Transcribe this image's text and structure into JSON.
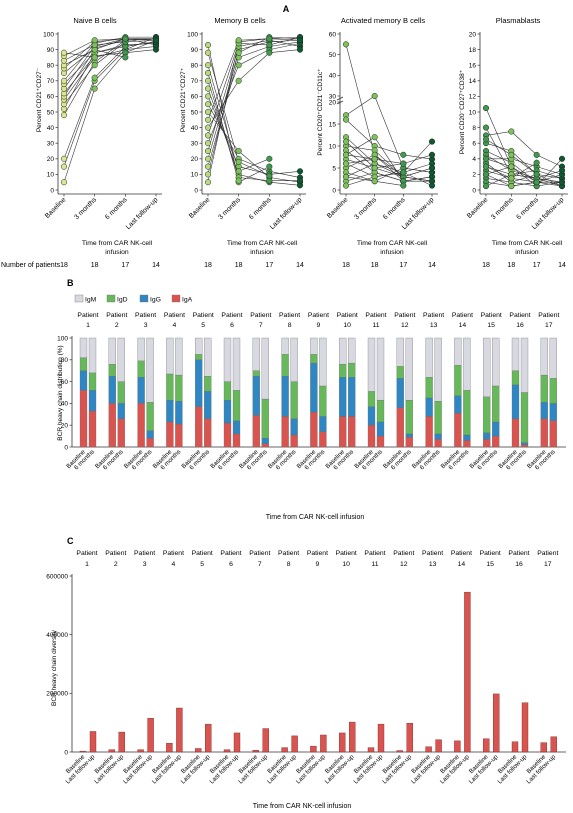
{
  "panel_labels": {
    "a": "A",
    "b": "B",
    "c": "C"
  },
  "colors": {
    "naive_marker": "#dbe68e",
    "memory_marker": "#b7dc7a",
    "activated_marker": "#7cc35a",
    "plasma_marker": "#3f9a4b",
    "last_marker": "#0d5a32",
    "IgM": "#d8d8e0",
    "IgD": "#67b85b",
    "IgG": "#2e86c3",
    "IgA": "#d9534f",
    "diversity_bar": "#d9534f"
  },
  "panel_a": {
    "number_of_patients_label": "Number of patients",
    "x_title_line1": "Time from CAR NK-cell",
    "x_title_line2": "infusion",
    "timepoints": [
      "Baseline",
      "3 months",
      "6 months",
      "Last follow-up"
    ],
    "patient_counts": [
      "18",
      "18",
      "17",
      "14"
    ]
  },
  "panel_b": {
    "ylabel": "BCR heavy chain distribution (%)",
    "xlabel": "Time from CAR NK-cell infusion",
    "patient_word": "Patient",
    "bar_labels": [
      "Baseline",
      "6 months"
    ]
  },
  "panel_c": {
    "ylabel": "BCR heavy chain diversity",
    "xlabel": "Time from CAR NK-cell infusion",
    "patient_word": "Patient",
    "bar_labels": [
      "Baseline",
      "Last follow-up"
    ]
  },
  "chart_data": [
    {
      "type": "scatter",
      "title": "Naive B cells",
      "ylabel": "Percent CD21⁺CD27⁻",
      "categories": [
        "Baseline",
        "3 months",
        "6 months",
        "Last follow-up"
      ],
      "ylim": [
        0,
        100
      ],
      "yticks": [
        0,
        10,
        20,
        30,
        40,
        50,
        60,
        70,
        80,
        90,
        100
      ],
      "series": [
        {
          "values": [
            5,
            65,
            88,
            90
          ]
        },
        {
          "values": [
            15,
            70,
            90,
            92
          ]
        },
        {
          "values": [
            20,
            72,
            92,
            95
          ]
        },
        {
          "values": [
            48,
            82,
            96,
            97
          ]
        },
        {
          "values": [
            52,
            88,
            93,
            94
          ]
        },
        {
          "values": [
            55,
            80,
            95,
            96
          ]
        },
        {
          "values": [
            58,
            85,
            90,
            98
          ]
        },
        {
          "values": [
            60,
            90,
            97,
            93
          ]
        },
        {
          "values": [
            62,
            86,
            88,
            96
          ]
        },
        {
          "values": [
            65,
            92,
            97,
            97
          ]
        },
        {
          "values": [
            68,
            88,
            92,
            95
          ]
        },
        {
          "values": [
            70,
            94,
            98,
            98
          ]
        },
        {
          "values": [
            75,
            91,
            96,
            97
          ]
        },
        {
          "values": [
            78,
            95,
            97,
            96
          ]
        },
        {
          "values": [
            80,
            90,
            85,
            null
          ]
        },
        {
          "values": [
            83,
            93,
            95,
            null
          ]
        },
        {
          "values": [
            86,
            96,
            97,
            null
          ]
        },
        {
          "values": [
            88,
            85,
            null,
            null
          ]
        }
      ]
    },
    {
      "type": "scatter",
      "title": "Memory B cells",
      "ylabel": "Percent CD21⁺CD27⁺",
      "categories": [
        "Baseline",
        "3 months",
        "6 months",
        "Last follow-up"
      ],
      "ylim": [
        0,
        100
      ],
      "yticks": [
        0,
        10,
        20,
        30,
        40,
        50,
        60,
        70,
        80,
        90,
        100
      ],
      "series": [
        {
          "values": [
            5,
            95,
            97,
            98
          ]
        },
        {
          "values": [
            10,
            90,
            95,
            96
          ]
        },
        {
          "values": [
            15,
            85,
            92,
            95
          ]
        },
        {
          "values": [
            20,
            88,
            98,
            97
          ]
        },
        {
          "values": [
            25,
            92,
            96,
            92
          ]
        },
        {
          "values": [
            30,
            80,
            90,
            94
          ]
        },
        {
          "values": [
            35,
            94,
            93,
            98
          ]
        },
        {
          "values": [
            40,
            70,
            88,
            90
          ]
        },
        {
          "values": [
            45,
            96,
            97,
            96
          ]
        },
        {
          "values": [
            50,
            25,
            8,
            5
          ]
        },
        {
          "values": [
            55,
            20,
            12,
            8
          ]
        },
        {
          "values": [
            60,
            15,
            10,
            12
          ]
        },
        {
          "values": [
            65,
            10,
            5,
            3
          ]
        },
        {
          "values": [
            70,
            8,
            6,
            6
          ]
        },
        {
          "values": [
            75,
            5,
            15,
            null
          ]
        },
        {
          "values": [
            80,
            12,
            20,
            null
          ]
        },
        {
          "values": [
            88,
            18,
            9,
            null
          ]
        },
        {
          "values": [
            93,
            6,
            null,
            null
          ]
        }
      ]
    },
    {
      "type": "scatter",
      "title": "Activated memory B cells",
      "ylabel": "Percent CD20⁺CD21⁻CD11c⁺",
      "categories": [
        "Baseline",
        "3 months",
        "6 months",
        "Last follow-up"
      ],
      "ylim": [
        0,
        60
      ],
      "yticks": [
        0,
        5,
        10,
        15,
        20,
        30,
        40,
        50,
        60
      ],
      "axis_break": [
        20,
        30
      ],
      "series": [
        {
          "values": [
            55,
            8,
            3,
            2
          ]
        },
        {
          "values": [
            17,
            30,
            5,
            4
          ]
        },
        {
          "values": [
            16,
            10,
            8,
            7
          ]
        },
        {
          "values": [
            12,
            6,
            4,
            11
          ]
        },
        {
          "values": [
            10,
            9,
            3,
            5
          ]
        },
        {
          "values": [
            9,
            4,
            2,
            3
          ]
        },
        {
          "values": [
            8,
            7,
            6,
            8
          ]
        },
        {
          "values": [
            7,
            5,
            3,
            2
          ]
        },
        {
          "values": [
            6,
            3,
            4,
            6
          ]
        },
        {
          "values": [
            5,
            8,
            2,
            3
          ]
        },
        {
          "values": [
            4,
            2,
            5,
            4
          ]
        },
        {
          "values": [
            3,
            6,
            3,
            5
          ]
        },
        {
          "values": [
            2,
            4,
            2,
            2
          ]
        },
        {
          "values": [
            1,
            3,
            4,
            1
          ]
        },
        {
          "values": [
            8,
            12,
            2,
            null
          ]
        },
        {
          "values": [
            11,
            5,
            6,
            null
          ]
        },
        {
          "values": [
            3,
            2,
            1,
            null
          ]
        },
        {
          "values": [
            6,
            7,
            null,
            null
          ]
        }
      ]
    },
    {
      "type": "scatter",
      "title": "Plasmablasts",
      "ylabel": "Percent CD20⁻CD27⁺CD38⁺",
      "categories": [
        "Baseline",
        "3 months",
        "6 months",
        "Last follow-up"
      ],
      "ylim": [
        0,
        20
      ],
      "yticks": [
        0,
        2,
        4,
        6,
        8,
        10,
        12,
        14,
        16,
        18,
        20
      ],
      "series": [
        {
          "values": [
            10.5,
            3,
            1,
            0.5
          ]
        },
        {
          "values": [
            8,
            2,
            1.5,
            1
          ]
        },
        {
          "values": [
            7,
            7.5,
            4.5,
            3
          ]
        },
        {
          "values": [
            6,
            5,
            2,
            1.5
          ]
        },
        {
          "values": [
            5,
            3.5,
            1,
            1
          ]
        },
        {
          "values": [
            4.5,
            2.5,
            1.5,
            0.5
          ]
        },
        {
          "values": [
            4,
            4,
            3,
            2
          ]
        },
        {
          "values": [
            3.5,
            1,
            0.5,
            4
          ]
        },
        {
          "values": [
            3,
            2,
            2.5,
            1.5
          ]
        },
        {
          "values": [
            2.5,
            1.5,
            1,
            2
          ]
        },
        {
          "values": [
            2,
            3,
            0.5,
            1
          ]
        },
        {
          "values": [
            1.5,
            1,
            2,
            0.5
          ]
        },
        {
          "values": [
            1,
            0.5,
            1,
            1
          ]
        },
        {
          "values": [
            0.5,
            2,
            1.5,
            2.5
          ]
        },
        {
          "values": [
            6.5,
            4.5,
            2,
            null
          ]
        },
        {
          "values": [
            3,
            1.5,
            3.5,
            null
          ]
        },
        {
          "values": [
            2,
            0.5,
            1,
            null
          ]
        },
        {
          "values": [
            4,
            3,
            null,
            null
          ]
        }
      ]
    },
    {
      "type": "bar",
      "stacked": true,
      "ylabel": "BCR heavy chain distribution (%)",
      "xlabel": "Time from CAR NK-cell infusion",
      "legend": [
        "IgM",
        "IgD",
        "IgG",
        "IgA"
      ],
      "ylim": [
        0,
        100
      ],
      "yticks": [
        0,
        20,
        40,
        60,
        80,
        100
      ],
      "patients": [
        "1",
        "2",
        "3",
        "4",
        "5",
        "6",
        "7",
        "8",
        "9",
        "10",
        "11",
        "12",
        "13",
        "14",
        "15",
        "16",
        "17"
      ],
      "bar_labels": [
        "Baseline",
        "6 months"
      ],
      "series": [
        {
          "name": "IgA",
          "baseline": [
            52,
            40,
            40,
            23,
            37,
            22,
            29,
            28,
            32,
            28,
            20,
            36,
            28,
            31,
            7,
            26,
            26
          ],
          "six_months": [
            33,
            26,
            8,
            21,
            26,
            12,
            3,
            11,
            14,
            28,
            10,
            9,
            7,
            6,
            10,
            2,
            24
          ]
        },
        {
          "name": "IgG",
          "baseline": [
            18,
            25,
            24,
            20,
            43,
            21,
            36,
            37,
            45,
            36,
            17,
            27,
            17,
            16,
            6,
            31,
            15
          ],
          "six_months": [
            19,
            14,
            7,
            21,
            25,
            12,
            5,
            15,
            14,
            36,
            13,
            3,
            5,
            5,
            13,
            2,
            16
          ]
        },
        {
          "name": "IgD",
          "baseline": [
            12,
            11,
            15,
            24,
            5,
            17,
            5,
            20,
            8,
            12,
            14,
            11,
            19,
            28,
            33,
            13,
            25
          ],
          "six_months": [
            16,
            20,
            26,
            24,
            14,
            28,
            36,
            34,
            28,
            13,
            20,
            31,
            30,
            41,
            33,
            46,
            23
          ]
        },
        {
          "name": "IgM",
          "baseline": [
            18,
            24,
            21,
            33,
            15,
            40,
            30,
            15,
            15,
            24,
            49,
            26,
            36,
            25,
            54,
            30,
            34
          ],
          "six_months": [
            32,
            40,
            59,
            34,
            35,
            48,
            56,
            40,
            44,
            23,
            57,
            57,
            58,
            48,
            44,
            50,
            37
          ]
        }
      ]
    },
    {
      "type": "bar",
      "ylabel": "BCR heavy chain diversity",
      "xlabel": "Time from CAR NK-cell infusion",
      "ylim": [
        0,
        600000
      ],
      "yticks": [
        0,
        200000,
        400000,
        600000
      ],
      "patients": [
        "1",
        "2",
        "3",
        "4",
        "5",
        "6",
        "7",
        "8",
        "9",
        "10",
        "11",
        "12",
        "13",
        "14",
        "15",
        "16",
        "17"
      ],
      "bar_labels": [
        "Baseline",
        "Last follow-up"
      ],
      "baseline": [
        3000,
        8000,
        8000,
        30000,
        12000,
        8000,
        6000,
        15000,
        20000,
        65000,
        15000,
        5000,
        18000,
        38000,
        45000,
        35000,
        32000
      ],
      "last_follow_up": [
        70000,
        68000,
        115000,
        150000,
        95000,
        65000,
        80000,
        55000,
        58000,
        102000,
        95000,
        98000,
        42000,
        545000,
        198000,
        168000,
        52000
      ]
    }
  ]
}
